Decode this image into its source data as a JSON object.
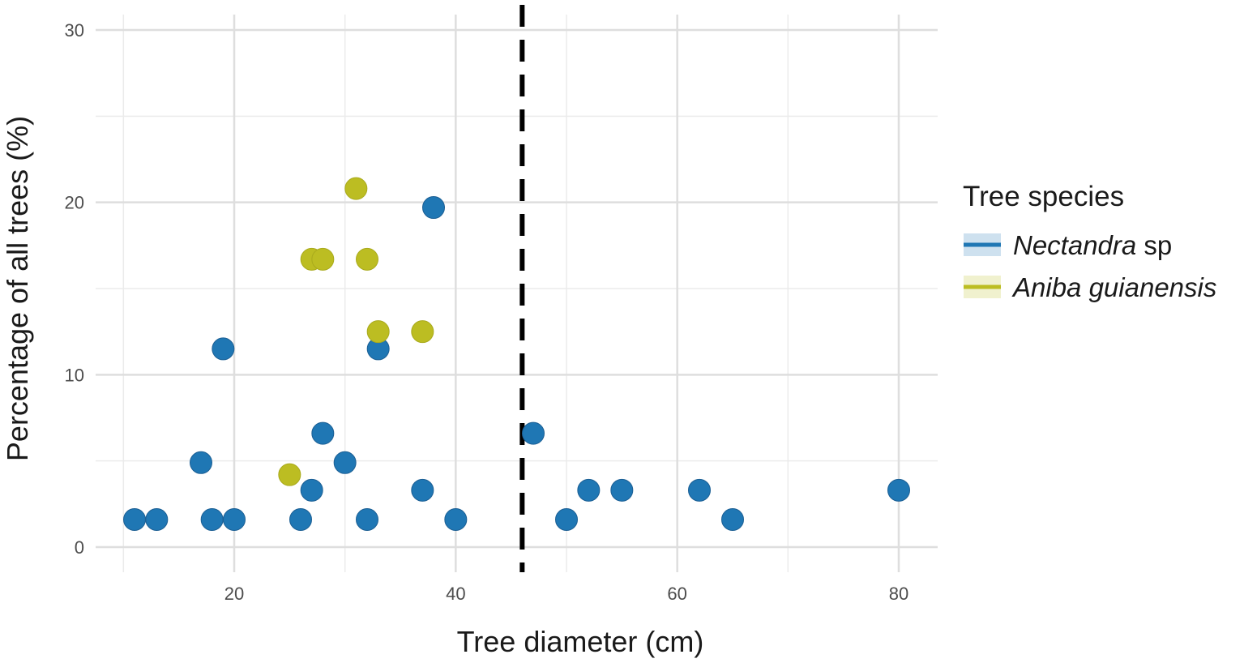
{
  "chart_data": {
    "type": "scatter",
    "title": "",
    "xlabel": "Tree diameter (cm)",
    "ylabel": "Percentage of all trees (%)",
    "xlim": [
      8,
      83.5
    ],
    "ylim": [
      -1.5,
      31
    ],
    "x_ticks": [
      20,
      40,
      60,
      80
    ],
    "y_ticks": [
      0,
      10,
      20,
      30
    ],
    "x_tick_labels": [
      "20",
      "40",
      "60",
      "80"
    ],
    "y_tick_labels": [
      "0",
      "10",
      "20",
      "30"
    ],
    "x_minor_gridlines": [
      10,
      30,
      50,
      70
    ],
    "y_minor_gridlines": [
      5,
      15,
      25
    ],
    "grid": true,
    "reference_line": {
      "x": 46,
      "style": "dashed",
      "color": "#000000"
    },
    "legend": {
      "title": "Tree species",
      "placement": "right",
      "entries": [
        {
          "label_italic": "Nectandra",
          "label_plain": " sp",
          "color": "#1f77b4"
        },
        {
          "label_italic": "Aniba guianensis",
          "label_plain": "",
          "color": "#bcbd22"
        }
      ]
    },
    "series": [
      {
        "name": "Nectandra sp",
        "color": "#1f77b4",
        "points": [
          [
            11,
            1.6
          ],
          [
            13,
            1.6
          ],
          [
            18,
            1.6
          ],
          [
            20,
            1.6
          ],
          [
            26,
            1.6
          ],
          [
            32,
            1.6
          ],
          [
            40,
            1.6
          ],
          [
            50,
            1.6
          ],
          [
            65,
            1.6
          ],
          [
            27,
            3.3
          ],
          [
            37,
            3.3
          ],
          [
            52,
            3.3
          ],
          [
            55,
            3.3
          ],
          [
            62,
            3.3
          ],
          [
            80,
            3.3
          ],
          [
            17,
            4.9
          ],
          [
            30,
            4.9
          ],
          [
            28,
            6.6
          ],
          [
            47,
            6.6
          ],
          [
            19,
            11.5
          ],
          [
            33,
            11.5
          ],
          [
            38,
            19.7
          ]
        ]
      },
      {
        "name": "Aniba guianensis",
        "color": "#bcbd22",
        "points": [
          [
            25,
            4.2
          ],
          [
            33,
            12.5
          ],
          [
            37,
            12.5
          ],
          [
            27,
            16.7
          ],
          [
            28,
            16.7
          ],
          [
            32,
            16.7
          ],
          [
            31,
            20.8
          ]
        ]
      }
    ]
  }
}
